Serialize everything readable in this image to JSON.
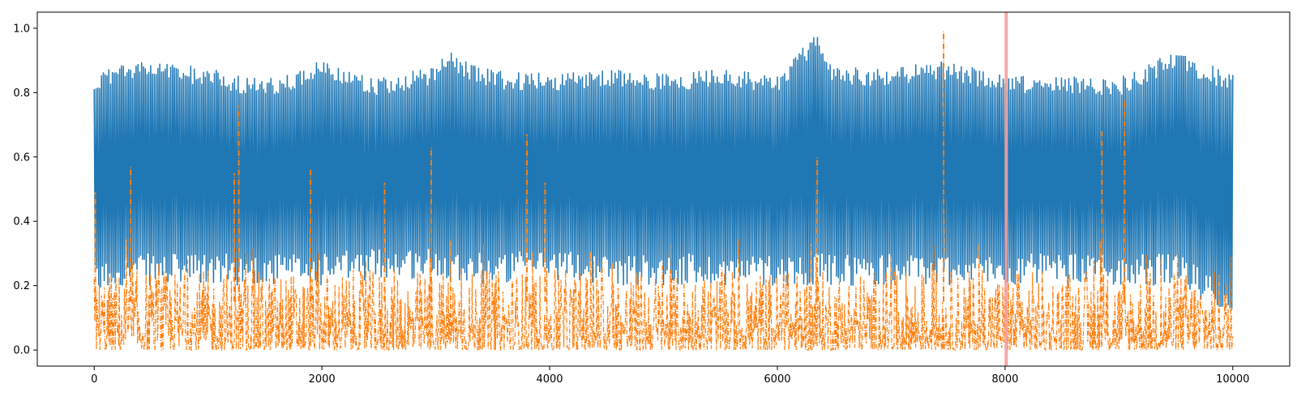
{
  "chart_data": {
    "type": "line",
    "title": "",
    "xlabel": "",
    "ylabel": "",
    "xlim": [
      -500,
      10500
    ],
    "ylim": [
      -0.05,
      1.05
    ],
    "xticks": [
      0,
      2000,
      4000,
      6000,
      8000,
      10000
    ],
    "xtick_labels": [
      "0",
      "2000",
      "4000",
      "6000",
      "8000",
      "10000"
    ],
    "yticks": [
      0.0,
      0.2,
      0.4,
      0.6,
      0.8,
      1.0
    ],
    "ytick_labels": [
      "0.0",
      "0.2",
      "0.4",
      "0.6",
      "0.8",
      "1.0"
    ],
    "grid": false,
    "legend": "none",
    "x_range": [
      0,
      10000
    ],
    "series": [
      {
        "color": "#1f77b4",
        "style": "solid",
        "envelope_x": [
          0,
          200,
          500,
          1000,
          1500,
          2000,
          2500,
          3000,
          3100,
          3500,
          4000,
          4500,
          5000,
          5500,
          6000,
          6300,
          6350,
          6500,
          7000,
          7500,
          8000,
          8500,
          9000,
          9500,
          10000
        ],
        "envelope_high": [
          0.85,
          0.9,
          0.9,
          0.88,
          0.84,
          0.9,
          0.85,
          0.88,
          0.93,
          0.87,
          0.86,
          0.88,
          0.86,
          0.88,
          0.86,
          0.97,
          1.0,
          0.88,
          0.88,
          0.9,
          0.86,
          0.85,
          0.85,
          0.93,
          0.86
        ],
        "envelope_low": [
          0.16,
          0.2,
          0.2,
          0.2,
          0.2,
          0.2,
          0.22,
          0.22,
          0.22,
          0.2,
          0.22,
          0.2,
          0.2,
          0.2,
          0.2,
          0.2,
          0.2,
          0.2,
          0.2,
          0.2,
          0.2,
          0.2,
          0.2,
          0.2,
          0.1
        ]
      },
      {
        "color": "#ff7f0e",
        "style": "dashdot",
        "baseline": [
          0.0,
          0.25
        ],
        "spikes": [
          {
            "x": 10,
            "y": 0.49
          },
          {
            "x": 320,
            "y": 0.57
          },
          {
            "x": 1230,
            "y": 0.55
          },
          {
            "x": 1270,
            "y": 0.76
          },
          {
            "x": 1900,
            "y": 0.56
          },
          {
            "x": 2550,
            "y": 0.52
          },
          {
            "x": 2960,
            "y": 0.63
          },
          {
            "x": 3800,
            "y": 0.67
          },
          {
            "x": 3960,
            "y": 0.52
          },
          {
            "x": 6350,
            "y": 0.6
          },
          {
            "x": 7460,
            "y": 0.99
          },
          {
            "x": 8850,
            "y": 0.68
          },
          {
            "x": 9050,
            "y": 0.78
          }
        ]
      }
    ],
    "highlight": {
      "x": 8010,
      "color": "#f4a0a0"
    }
  }
}
